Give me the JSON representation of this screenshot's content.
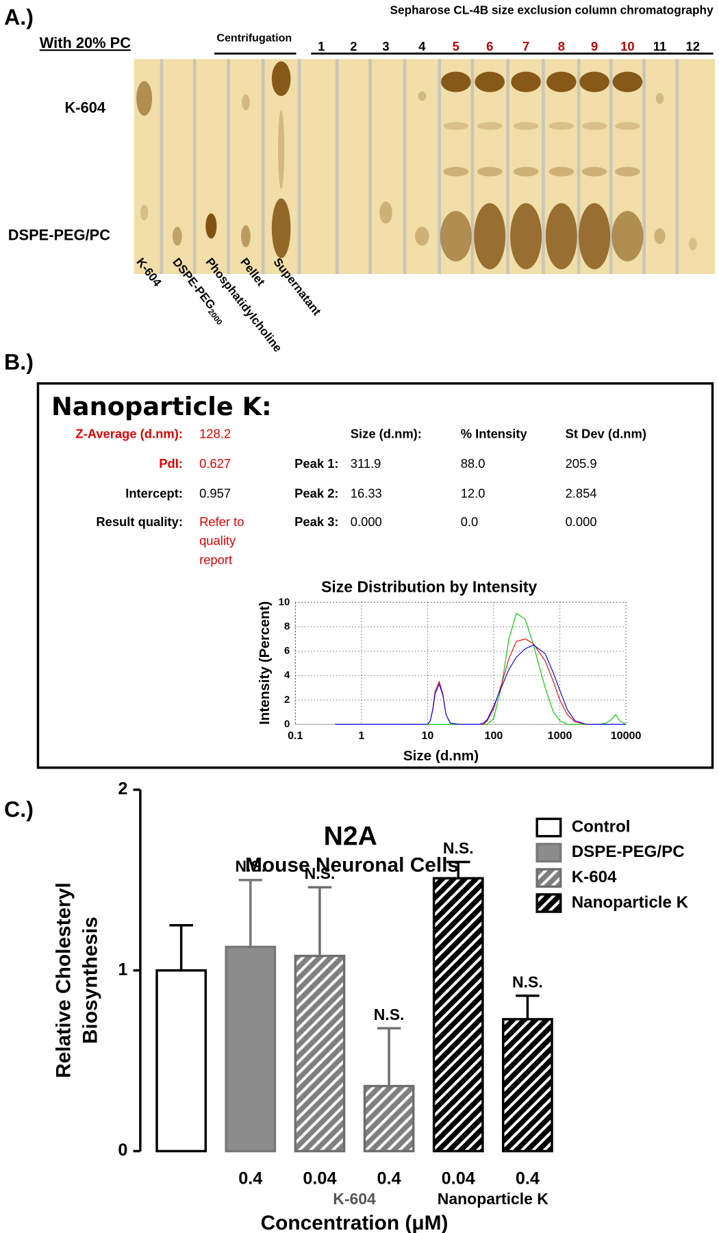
{
  "panel_labels": [
    "A.)",
    "B.)",
    "C.)"
  ],
  "panel_a": {
    "title": "Sepharose CL-4B size exclusion column chromatography",
    "sample_header": "With 20% PC",
    "centrifugation_header": "Centrifugation",
    "row_labels": [
      "K-604",
      "DSPE-PEG/PC"
    ],
    "lane_labels": [
      {
        "text": "K-604"
      },
      {
        "text": "DSPE-PEG",
        "subscript": "2000"
      },
      {
        "text": "Phosphatidylcholine"
      },
      {
        "text": "Pellet"
      },
      {
        "text": "Supernatant"
      }
    ],
    "fractions": [
      {
        "label": "1",
        "color": "#000000"
      },
      {
        "label": "2",
        "color": "#000000"
      },
      {
        "label": "3",
        "color": "#000000"
      },
      {
        "label": "4",
        "color": "#000000"
      },
      {
        "label": "5",
        "color": "#c00000"
      },
      {
        "label": "6",
        "color": "#c00000"
      },
      {
        "label": "7",
        "color": "#c00000"
      },
      {
        "label": "8",
        "color": "#c00000"
      },
      {
        "label": "9",
        "color": "#c00000"
      },
      {
        "label": "10",
        "color": "#c00000"
      },
      {
        "label": "11",
        "color": "#000000"
      },
      {
        "label": "12",
        "color": "#000000"
      }
    ]
  },
  "panel_b": {
    "title": "Nanoparticle K:",
    "summary": [
      {
        "label": "Z-Average (d.nm):",
        "value": [
          "128.2"
        ],
        "label_color": "#e00000",
        "value_color": "#e00000"
      },
      {
        "label": "PdI:",
        "value": [
          "0.627"
        ],
        "label_color": "#e00000",
        "value_color": "#e00000"
      },
      {
        "label": "Intercept:",
        "value": [
          "0.957"
        ],
        "label_color": "#000000",
        "value_color": "#000000"
      },
      {
        "label": "Result quality:",
        "value": [
          "Refer to",
          "quality",
          "report"
        ],
        "label_color": "#000000",
        "value_color": "#e00000"
      }
    ],
    "peaks": {
      "headers": [
        "Size (d.nm):",
        "% Intensity",
        "St Dev (d.nm)"
      ],
      "rows": [
        [
          "Peak 1:",
          "311.9",
          "88.0",
          "205.9"
        ],
        [
          "Peak 2:",
          "16.33",
          "12.0",
          "2.854"
        ],
        [
          "Peak 3:",
          "0.000",
          "0.0",
          "0.000"
        ]
      ]
    }
  },
  "chart_data": [
    {
      "type": "line",
      "title": "Size Distribution by Intensity",
      "xlabel": "Size (d.nm)",
      "ylabel": "Intensity (Percent)",
      "xscale": "log",
      "grid": true,
      "xlim": [
        0.1,
        10000
      ],
      "xticks": [
        0.1,
        1,
        10,
        100,
        1000,
        10000
      ],
      "ylim": [
        0,
        10
      ],
      "yticks": [
        0,
        2,
        4,
        6,
        8,
        10
      ],
      "x": [
        0.4,
        8,
        10,
        11,
        12,
        13,
        15,
        17,
        19,
        22,
        30,
        50,
        60,
        70,
        80,
        100,
        130,
        170,
        220,
        300,
        400,
        600,
        800,
        1000,
        1300,
        1700,
        2500,
        4000,
        5000,
        6000,
        7000,
        8000,
        10000
      ],
      "series": [
        {
          "color": "#00cc00",
          "values": [
            0,
            0,
            0,
            0,
            0,
            0,
            0,
            0,
            0,
            0,
            0,
            0,
            0,
            0,
            0,
            0.5,
            3.0,
            7.0,
            9.1,
            8.6,
            6.5,
            3.0,
            1.0,
            0.3,
            0,
            0,
            0,
            0,
            0.1,
            0.4,
            0.8,
            0.3,
            0
          ]
        },
        {
          "color": "#ff0000",
          "values": [
            0,
            0,
            0,
            0.3,
            1.3,
            2.7,
            3.5,
            2.5,
            0.8,
            0.1,
            0,
            0,
            0,
            0,
            0.3,
            1.3,
            3.2,
            5.4,
            6.8,
            7.0,
            6.6,
            5.2,
            3.5,
            2.0,
            0.8,
            0.2,
            0,
            0,
            0,
            0,
            0,
            0,
            0
          ]
        },
        {
          "color": "#0000ff",
          "values": [
            0,
            0,
            0,
            0.3,
            1.2,
            2.5,
            3.3,
            2.4,
            0.8,
            0.1,
            0,
            0,
            0,
            0.1,
            0.4,
            1.5,
            3.0,
            4.5,
            5.5,
            6.2,
            6.5,
            5.8,
            4.2,
            2.8,
            1.2,
            0.3,
            0,
            0,
            0,
            0,
            0,
            0,
            0
          ]
        }
      ]
    },
    {
      "type": "bar",
      "title": "N2A",
      "subtitle": "Mouse Neuronal Cells",
      "ylabel": [
        "Relative Cholesteryl",
        "Biosynthesis"
      ],
      "xlabel": "Concentration (μM)",
      "ylim": [
        0,
        2
      ],
      "yticks": [
        0,
        1,
        2
      ],
      "categories": [
        null,
        "0.4",
        "0.04",
        "0.4",
        "0.04",
        "0.4"
      ],
      "series": [
        {
          "name": "Control",
          "color": "#ffffff",
          "edge": "#000000",
          "pattern": "solid",
          "values": [
            1.0,
            null,
            null,
            null,
            null,
            null
          ],
          "errors": [
            0.25,
            null,
            null,
            null,
            null,
            null
          ],
          "value_labels": [
            null,
            null,
            null,
            null,
            null,
            null
          ]
        },
        {
          "name": "DSPE-PEG/PC",
          "color": "#8c8c8c",
          "edge": "#777777",
          "pattern": "solid",
          "values": [
            null,
            1.13,
            null,
            null,
            null,
            null
          ],
          "errors": [
            null,
            0.37,
            null,
            null,
            null,
            null
          ],
          "value_labels": [
            null,
            "N.S.",
            null,
            null,
            null,
            null
          ]
        },
        {
          "name": "K-604",
          "color": "#808080",
          "edge": "#6e6e6e",
          "pattern": "hatch",
          "group_label": "K-604",
          "group_color": "#555555",
          "values": [
            null,
            null,
            1.08,
            0.36,
            null,
            null
          ],
          "errors": [
            null,
            null,
            0.38,
            0.32,
            null,
            null
          ],
          "value_labels": [
            null,
            null,
            "N.S.",
            "N.S.",
            null,
            null
          ]
        },
        {
          "name": "Nanoparticle K",
          "color": "#000000",
          "edge": "#000000",
          "pattern": "hatch",
          "group_label": "Nanoparticle K",
          "group_color": "#000000",
          "values": [
            null,
            null,
            null,
            null,
            1.51,
            0.73
          ],
          "errors": [
            null,
            null,
            null,
            null,
            0.09,
            0.13
          ],
          "value_labels": [
            null,
            null,
            null,
            null,
            "N.S.",
            "N.S."
          ]
        }
      ]
    }
  ]
}
